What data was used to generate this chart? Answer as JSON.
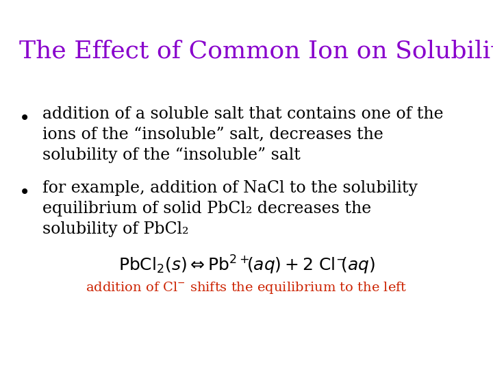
{
  "background_color": "#ffffff",
  "title": "The Effect of Common Ion on Solubility",
  "title_color": "#8800CC",
  "title_fontsize": 26,
  "bullet1_lines": [
    "addition of a soluble salt that contains one of the",
    "ions of the “insoluble” salt, decreases the",
    "solubility of the “insoluble” salt"
  ],
  "bullet2_lines": [
    "for example, addition of NaCl to the solubility",
    "equilibrium of solid PbCl₂ decreases the",
    "solubility of PbCl₂"
  ],
  "bullet_color": "#000000",
  "bullet_fontsize": 17,
  "equation_fontsize": 18,
  "footnote_color": "#cc2200",
  "footnote_fontsize": 14
}
